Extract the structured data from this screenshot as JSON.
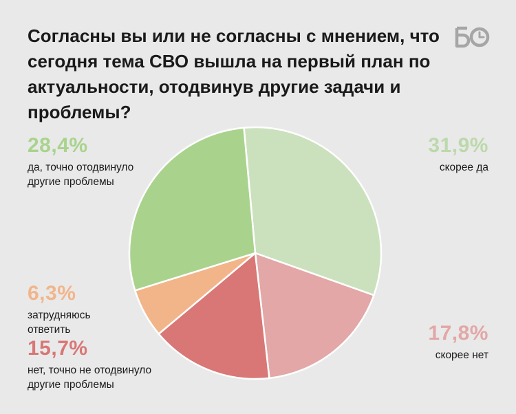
{
  "title": "Согласны вы или не согласны с мнением, что сегодня тема СВО вышла на первый план по актуальности, отодвинув другие задачи и проблемы?",
  "logo": {
    "text": "БО"
  },
  "chart_data": {
    "type": "pie",
    "title": "Согласны вы или не согласны с мнением, что сегодня тема СВО вышла на первый план по актуальности, отодвинув другие задачи и проблемы?",
    "slices": [
      {
        "label": "скорее да",
        "value": 31.9,
        "value_label": "31,9%",
        "color": "#cbe1bd",
        "text_color": "#bcd9ab"
      },
      {
        "label": "скорее нет",
        "value": 17.8,
        "value_label": "17,8%",
        "color": "#e2a7a6",
        "text_color": "#e2a7a6"
      },
      {
        "label": "нет, точно не отодвинуло другие проблемы",
        "value": 15.7,
        "value_label": "15,7%",
        "color": "#d87776",
        "text_color": "#d87776"
      },
      {
        "label": "затрудняюсь ответить",
        "value": 6.3,
        "value_label": "6,3%",
        "color": "#f2b58a",
        "text_color": "#f2b58a"
      },
      {
        "label": "да, точно отодвинуло другие проблемы",
        "value": 28.4,
        "value_label": "28,4%",
        "color": "#a9d38d",
        "text_color": "#a9d38d"
      }
    ]
  }
}
